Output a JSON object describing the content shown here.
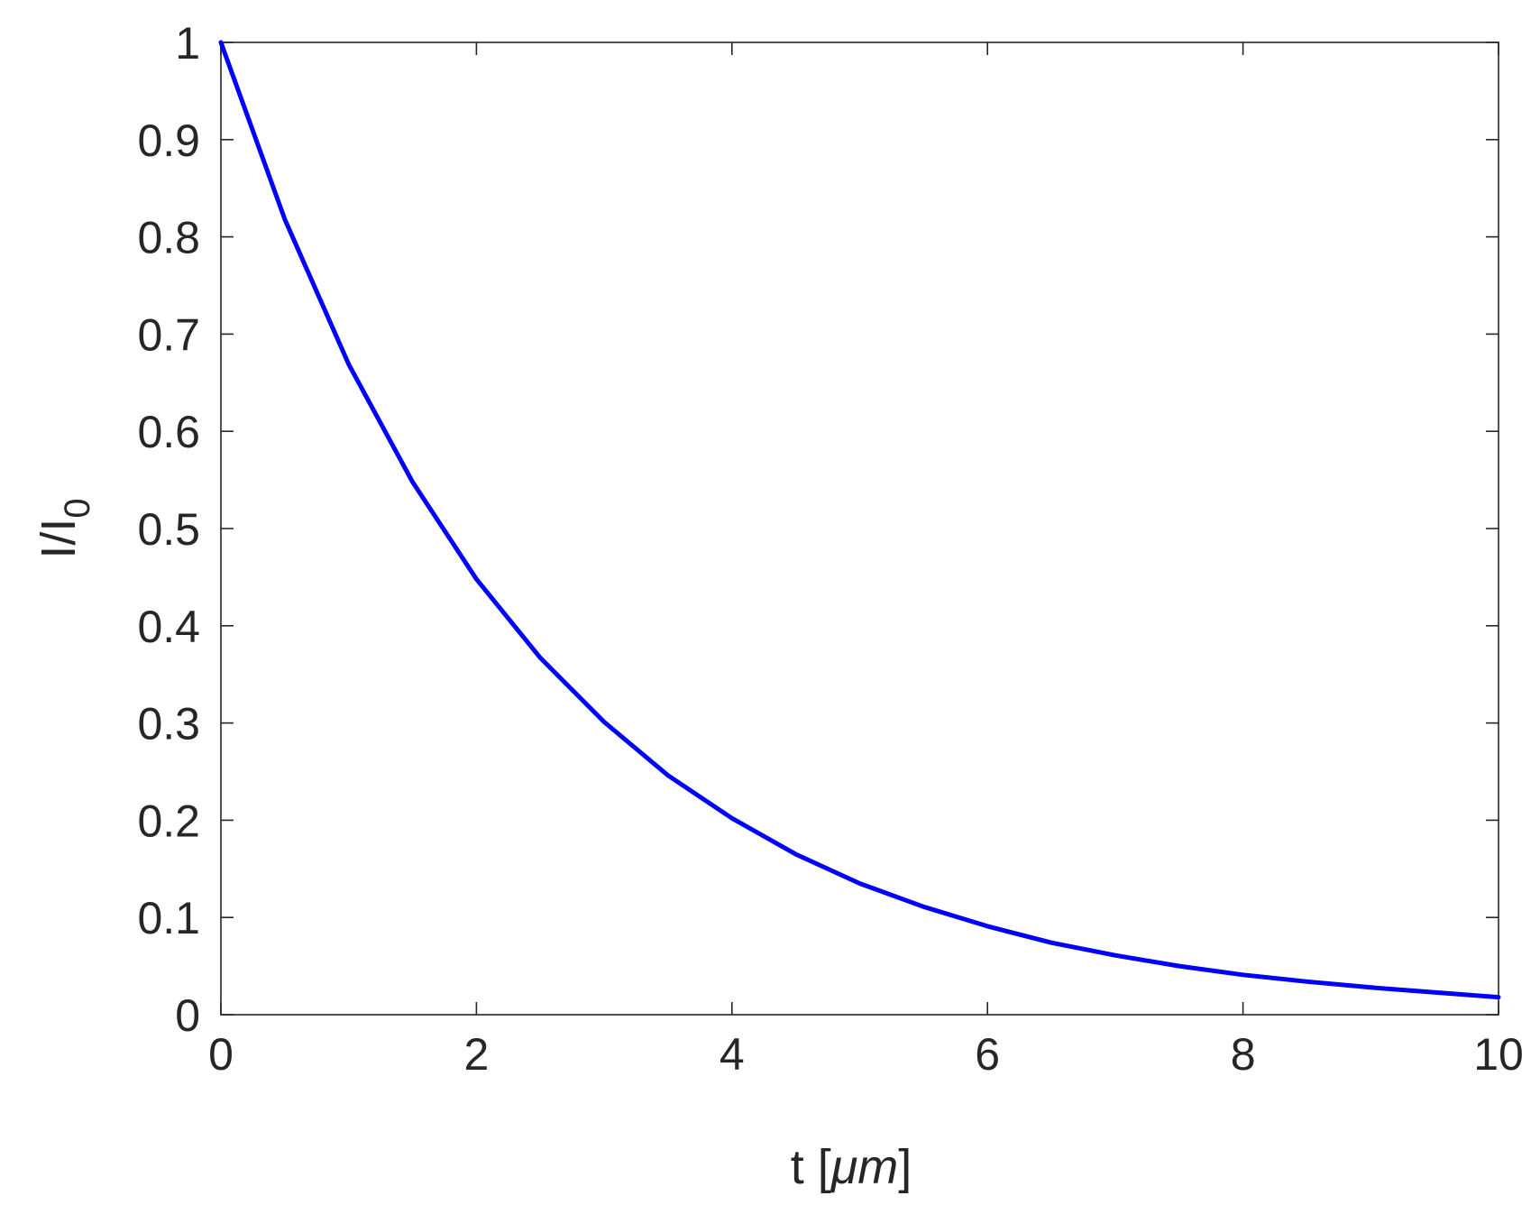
{
  "chart_data": {
    "type": "line",
    "title": "",
    "xlabel": {
      "main": "t [",
      "unit": "μm",
      "close": "]"
    },
    "ylabel": {
      "main": "I/I",
      "subscript": "0"
    },
    "xlim": [
      0,
      10
    ],
    "ylim": [
      0,
      1
    ],
    "xticks": [
      0,
      2,
      4,
      6,
      8,
      10
    ],
    "xtick_labels": [
      "0",
      "2",
      "4",
      "6",
      "8",
      "10"
    ],
    "yticks": [
      0,
      0.1,
      0.2,
      0.3,
      0.4,
      0.5,
      0.6,
      0.7,
      0.8,
      0.9,
      1
    ],
    "ytick_labels": [
      "0",
      "0.1",
      "0.2",
      "0.3",
      "0.4",
      "0.5",
      "0.6",
      "0.7",
      "0.8",
      "0.9",
      "1"
    ],
    "grid": false,
    "legend": null,
    "series": [
      {
        "color": "#0000ff",
        "x": [
          0,
          0.5,
          1,
          1.5,
          2,
          2.5,
          3,
          3.5,
          4,
          4.5,
          5,
          5.5,
          6,
          6.5,
          7,
          7.5,
          8,
          8.5,
          9,
          9.5,
          10
        ],
        "y": [
          1.0,
          0.818,
          0.669,
          0.548,
          0.448,
          0.367,
          0.301,
          0.246,
          0.202,
          0.165,
          0.135,
          0.111,
          0.091,
          0.074,
          0.061,
          0.05,
          0.041,
          0.034,
          0.028,
          0.023,
          0.018
        ]
      }
    ]
  }
}
